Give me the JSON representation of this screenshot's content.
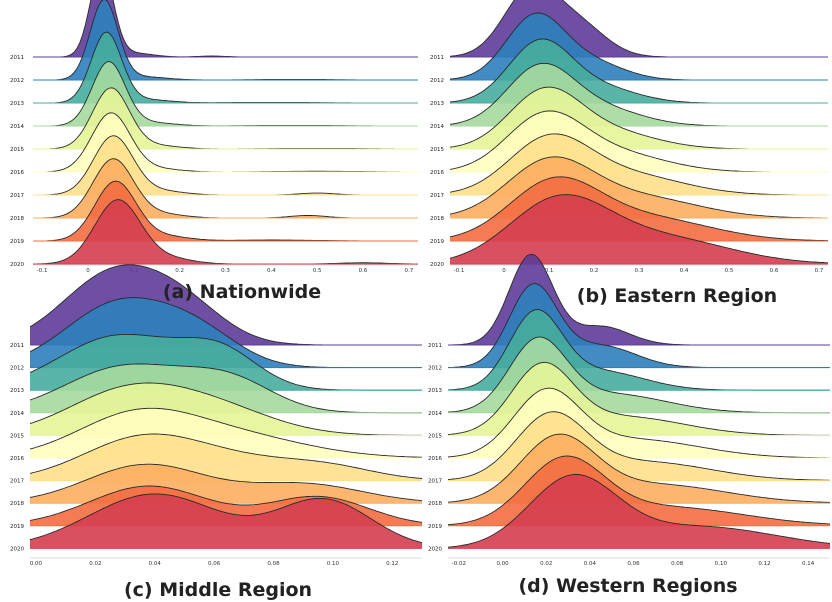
{
  "colors": [
    "#5e3c99",
    "#2e7fbc",
    "#46ad9d",
    "#a5d99e",
    "#e6f598",
    "#ffffbf",
    "#fee08b",
    "#fdae61",
    "#f46d43",
    "#d53e4f"
  ],
  "chart_data": [
    {
      "type": "ridgeline",
      "title": "(a)  Nationwide",
      "years": [
        "2011",
        "2012",
        "2013",
        "2014",
        "2015",
        "2016",
        "2017",
        "2018",
        "2019",
        "2020"
      ],
      "xticks": [
        "-0.1",
        "0",
        "0.1",
        "0.2",
        "0.3",
        "0.4",
        "0.5",
        "0.6",
        "0.7"
      ],
      "xlim": [
        -0.12,
        0.72
      ],
      "series": [
        {
          "year": "2011",
          "peaks": [
            {
              "mu": 0.03,
              "sd": 0.025,
              "h": 1.4
            },
            {
              "mu": 0.1,
              "sd": 0.04,
              "h": 0.06
            },
            {
              "mu": 0.27,
              "sd": 0.03,
              "h": 0.015
            }
          ]
        },
        {
          "year": "2012",
          "peaks": [
            {
              "mu": 0.035,
              "sd": 0.03,
              "h": 1.25
            },
            {
              "mu": 0.12,
              "sd": 0.05,
              "h": 0.05
            },
            {
              "mu": 0.45,
              "sd": 0.08,
              "h": 0.01
            }
          ]
        },
        {
          "year": "2013",
          "peaks": [
            {
              "mu": 0.04,
              "sd": 0.033,
              "h": 1.1
            },
            {
              "mu": 0.13,
              "sd": 0.05,
              "h": 0.05
            },
            {
              "mu": 0.4,
              "sd": 0.1,
              "h": 0.01
            }
          ]
        },
        {
          "year": "2014",
          "peaks": [
            {
              "mu": 0.045,
              "sd": 0.036,
              "h": 1.0
            },
            {
              "mu": 0.14,
              "sd": 0.05,
              "h": 0.05
            },
            {
              "mu": 0.45,
              "sd": 0.1,
              "h": 0.01
            }
          ]
        },
        {
          "year": "2015",
          "peaks": [
            {
              "mu": 0.05,
              "sd": 0.04,
              "h": 0.95
            },
            {
              "mu": 0.15,
              "sd": 0.05,
              "h": 0.05
            },
            {
              "mu": 0.5,
              "sd": 0.1,
              "h": 0.01
            }
          ]
        },
        {
          "year": "2016",
          "peaks": [
            {
              "mu": 0.05,
              "sd": 0.042,
              "h": 0.92
            },
            {
              "mu": 0.15,
              "sd": 0.05,
              "h": 0.05
            },
            {
              "mu": 0.5,
              "sd": 0.1,
              "h": 0.012
            }
          ]
        },
        {
          "year": "2017",
          "peaks": [
            {
              "mu": 0.055,
              "sd": 0.043,
              "h": 0.92
            },
            {
              "mu": 0.16,
              "sd": 0.05,
              "h": 0.06
            },
            {
              "mu": 0.5,
              "sd": 0.04,
              "h": 0.03
            }
          ]
        },
        {
          "year": "2018",
          "peaks": [
            {
              "mu": 0.055,
              "sd": 0.044,
              "h": 0.92
            },
            {
              "mu": 0.16,
              "sd": 0.05,
              "h": 0.06
            },
            {
              "mu": 0.48,
              "sd": 0.04,
              "h": 0.04
            }
          ]
        },
        {
          "year": "2019",
          "peaks": [
            {
              "mu": 0.06,
              "sd": 0.045,
              "h": 0.93
            },
            {
              "mu": 0.17,
              "sd": 0.05,
              "h": 0.07
            },
            {
              "mu": 0.4,
              "sd": 0.1,
              "h": 0.015
            }
          ]
        },
        {
          "year": "2020",
          "peaks": [
            {
              "mu": 0.065,
              "sd": 0.05,
              "h": 1.0
            },
            {
              "mu": 0.18,
              "sd": 0.05,
              "h": 0.08
            },
            {
              "mu": 0.6,
              "sd": 0.05,
              "h": 0.02
            }
          ]
        }
      ]
    },
    {
      "type": "ridgeline",
      "title": "(b)  Eastern Region",
      "years": [
        "2011",
        "2012",
        "2013",
        "2014",
        "2015",
        "2016",
        "2017",
        "2018",
        "2019",
        "2020"
      ],
      "xticks": [
        "-0.1",
        "0",
        "0.1",
        "0.2",
        "0.3",
        "0.4",
        "0.5",
        "0.6",
        "0.7"
      ],
      "xlim": [
        -0.12,
        0.72
      ],
      "series": [
        {
          "year": "2011",
          "peaks": [
            {
              "mu": 0.06,
              "sd": 0.06,
              "h": 1.05
            },
            {
              "mu": 0.17,
              "sd": 0.06,
              "h": 0.45
            }
          ]
        },
        {
          "year": "2012",
          "peaks": [
            {
              "mu": 0.07,
              "sd": 0.065,
              "h": 1.0
            },
            {
              "mu": 0.2,
              "sd": 0.07,
              "h": 0.25
            }
          ]
        },
        {
          "year": "2013",
          "peaks": [
            {
              "mu": 0.08,
              "sd": 0.07,
              "h": 0.95
            },
            {
              "mu": 0.22,
              "sd": 0.08,
              "h": 0.22
            }
          ]
        },
        {
          "year": "2014",
          "peaks": [
            {
              "mu": 0.08,
              "sd": 0.075,
              "h": 0.9
            },
            {
              "mu": 0.22,
              "sd": 0.09,
              "h": 0.25
            }
          ]
        },
        {
          "year": "2015",
          "peaks": [
            {
              "mu": 0.09,
              "sd": 0.08,
              "h": 0.88
            },
            {
              "mu": 0.24,
              "sd": 0.1,
              "h": 0.25
            }
          ]
        },
        {
          "year": "2016",
          "peaks": [
            {
              "mu": 0.09,
              "sd": 0.085,
              "h": 0.85
            },
            {
              "mu": 0.25,
              "sd": 0.11,
              "h": 0.28
            }
          ]
        },
        {
          "year": "2017",
          "peaks": [
            {
              "mu": 0.1,
              "sd": 0.09,
              "h": 0.85
            },
            {
              "mu": 0.28,
              "sd": 0.12,
              "h": 0.3
            }
          ]
        },
        {
          "year": "2018",
          "peaks": [
            {
              "mu": 0.1,
              "sd": 0.095,
              "h": 0.85
            },
            {
              "mu": 0.3,
              "sd": 0.13,
              "h": 0.32
            }
          ]
        },
        {
          "year": "2019",
          "peaks": [
            {
              "mu": 0.11,
              "sd": 0.1,
              "h": 0.88
            },
            {
              "mu": 0.32,
              "sd": 0.14,
              "h": 0.35
            }
          ]
        },
        {
          "year": "2020",
          "peaks": [
            {
              "mu": 0.12,
              "sd": 0.11,
              "h": 0.95
            },
            {
              "mu": 0.35,
              "sd": 0.15,
              "h": 0.4
            }
          ]
        }
      ]
    },
    {
      "type": "ridgeline",
      "title": "(c) Middle Region",
      "years": [
        "2011",
        "2012",
        "2013",
        "2014",
        "2015",
        "2016",
        "2017",
        "2018",
        "2019",
        "2020"
      ],
      "xticks": [
        "0.00",
        "0.02",
        "0.04",
        "0.06",
        "0.08",
        "0.10",
        "0.12"
      ],
      "xlim": [
        -0.002,
        0.13
      ],
      "series": [
        {
          "year": "2011",
          "peaks": [
            {
              "mu": 0.026,
              "sd": 0.017,
              "h": 1.1
            },
            {
              "mu": 0.05,
              "sd": 0.014,
              "h": 0.5
            }
          ]
        },
        {
          "year": "2012",
          "peaks": [
            {
              "mu": 0.028,
              "sd": 0.018,
              "h": 1.0
            },
            {
              "mu": 0.055,
              "sd": 0.014,
              "h": 0.45
            }
          ]
        },
        {
          "year": "2013",
          "peaks": [
            {
              "mu": 0.028,
              "sd": 0.02,
              "h": 0.85
            },
            {
              "mu": 0.062,
              "sd": 0.013,
              "h": 0.55
            }
          ]
        },
        {
          "year": "2014",
          "peaks": [
            {
              "mu": 0.03,
              "sd": 0.02,
              "h": 0.72
            },
            {
              "mu": 0.065,
              "sd": 0.015,
              "h": 0.48
            }
          ]
        },
        {
          "year": "2015",
          "peaks": [
            {
              "mu": 0.03,
              "sd": 0.02,
              "h": 0.65
            },
            {
              "mu": 0.06,
              "sd": 0.02,
              "h": 0.4
            }
          ]
        },
        {
          "year": "2016",
          "peaks": [
            {
              "mu": 0.033,
              "sd": 0.02,
              "h": 0.6
            },
            {
              "mu": 0.065,
              "sd": 0.025,
              "h": 0.35
            }
          ]
        },
        {
          "year": "2017",
          "peaks": [
            {
              "mu": 0.035,
              "sd": 0.02,
              "h": 0.6
            },
            {
              "mu": 0.07,
              "sd": 0.025,
              "h": 0.3
            },
            {
              "mu": 0.1,
              "sd": 0.015,
              "h": 0.12
            }
          ]
        },
        {
          "year": "2018",
          "peaks": [
            {
              "mu": 0.037,
              "sd": 0.02,
              "h": 0.6
            },
            {
              "mu": 0.09,
              "sd": 0.02,
              "h": 0.3
            }
          ]
        },
        {
          "year": "2019",
          "peaks": [
            {
              "mu": 0.038,
              "sd": 0.02,
              "h": 0.62
            },
            {
              "mu": 0.095,
              "sd": 0.017,
              "h": 0.45
            }
          ]
        },
        {
          "year": "2020",
          "peaks": [
            {
              "mu": 0.04,
              "sd": 0.022,
              "h": 0.85
            },
            {
              "mu": 0.097,
              "sd": 0.016,
              "h": 0.75
            }
          ]
        }
      ]
    },
    {
      "type": "ridgeline",
      "title": "(d) Western Regions",
      "years": [
        "2011",
        "2012",
        "2013",
        "2014",
        "2015",
        "2016",
        "2017",
        "2018",
        "2019",
        "2020"
      ],
      "xticks": [
        "-0.02",
        "0.00",
        "0.02",
        "0.04",
        "0.06",
        "0.08",
        "0.10",
        "0.12",
        "0.14"
      ],
      "xlim": [
        -0.025,
        0.15
      ],
      "series": [
        {
          "year": "2011",
          "peaks": [
            {
              "mu": 0.013,
              "sd": 0.01,
              "h": 1.45
            },
            {
              "mu": 0.045,
              "sd": 0.013,
              "h": 0.3
            }
          ]
        },
        {
          "year": "2012",
          "peaks": [
            {
              "mu": 0.014,
              "sd": 0.011,
              "h": 1.3
            },
            {
              "mu": 0.045,
              "sd": 0.016,
              "h": 0.35
            }
          ]
        },
        {
          "year": "2013",
          "peaks": [
            {
              "mu": 0.015,
              "sd": 0.012,
              "h": 1.2
            },
            {
              "mu": 0.045,
              "sd": 0.02,
              "h": 0.3
            }
          ]
        },
        {
          "year": "2014",
          "peaks": [
            {
              "mu": 0.016,
              "sd": 0.013,
              "h": 1.1
            },
            {
              "mu": 0.05,
              "sd": 0.025,
              "h": 0.3
            }
          ]
        },
        {
          "year": "2015",
          "peaks": [
            {
              "mu": 0.018,
              "sd": 0.014,
              "h": 1.05
            },
            {
              "mu": 0.055,
              "sd": 0.028,
              "h": 0.3
            }
          ]
        },
        {
          "year": "2016",
          "peaks": [
            {
              "mu": 0.02,
              "sd": 0.015,
              "h": 1.0
            },
            {
              "mu": 0.06,
              "sd": 0.03,
              "h": 0.3
            }
          ]
        },
        {
          "year": "2017",
          "peaks": [
            {
              "mu": 0.022,
              "sd": 0.016,
              "h": 1.0
            },
            {
              "mu": 0.065,
              "sd": 0.03,
              "h": 0.3
            }
          ]
        },
        {
          "year": "2018",
          "peaks": [
            {
              "mu": 0.025,
              "sd": 0.017,
              "h": 1.0
            },
            {
              "mu": 0.07,
              "sd": 0.032,
              "h": 0.3
            }
          ]
        },
        {
          "year": "2019",
          "peaks": [
            {
              "mu": 0.028,
              "sd": 0.018,
              "h": 1.0
            },
            {
              "mu": 0.075,
              "sd": 0.035,
              "h": 0.3
            }
          ]
        },
        {
          "year": "2020",
          "peaks": [
            {
              "mu": 0.032,
              "sd": 0.02,
              "h": 1.1
            },
            {
              "mu": 0.09,
              "sd": 0.035,
              "h": 0.35
            }
          ]
        }
      ]
    }
  ]
}
